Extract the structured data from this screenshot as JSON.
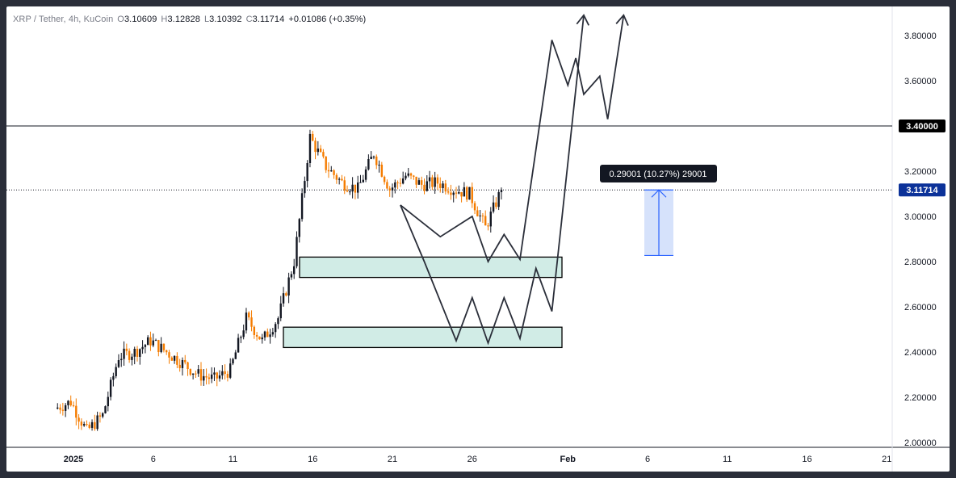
{
  "legend": {
    "symbol": "XRP / Tether, 4h, KuCoin",
    "open_label": "O",
    "open": "3.10609",
    "high_label": "H",
    "high": "3.12828",
    "low_label": "L",
    "low": "3.10392",
    "close_label": "C",
    "close": "3.11714",
    "change": "+0.01086 (+0.35%)"
  },
  "colors": {
    "up": "#131722",
    "down": "#f57c00",
    "zone_fill": "#d1ece6",
    "zone_stroke": "#000000",
    "path": "#2a2e39",
    "measure": "#2962ff",
    "measure_fill": "#d6e2fb",
    "last_price_tag": "#0c3299",
    "level_tag": "#000000"
  },
  "chart_data": {
    "type": "candlestick",
    "symbol": "XRP / Tether",
    "interval": "4h",
    "exchange": "KuCoin",
    "ylim": [
      1.97,
      3.93
    ],
    "y_ticks": [
      "2.00000",
      "2.20000",
      "2.40000",
      "2.60000",
      "2.80000",
      "3.00000",
      "3.20000",
      "3.40000",
      "3.60000",
      "3.80000"
    ],
    "x_ticks": [
      "2025",
      "6",
      "11",
      "16",
      "21",
      "26",
      "Feb",
      "6",
      "11",
      "16",
      "21"
    ],
    "date_range": [
      "2024-12-31",
      "2025-01-28"
    ],
    "key_prices": [
      {
        "date": "2024-12-31",
        "price": 2.15
      },
      {
        "date": "2025-01-01",
        "price": 2.18
      },
      {
        "date": "2025-01-02",
        "price": 2.05
      },
      {
        "date": "2025-01-03",
        "price": 2.12
      },
      {
        "date": "2025-01-04",
        "price": 2.38
      },
      {
        "date": "2025-01-05",
        "price": 2.4
      },
      {
        "date": "2025-01-06",
        "price": 2.45
      },
      {
        "date": "2025-01-07",
        "price": 2.4
      },
      {
        "date": "2025-01-08",
        "price": 2.35
      },
      {
        "date": "2025-01-09",
        "price": 2.3
      },
      {
        "date": "2025-01-10",
        "price": 2.28
      },
      {
        "date": "2025-01-11",
        "price": 2.32
      },
      {
        "date": "2025-01-12",
        "price": 2.55
      },
      {
        "date": "2025-01-13",
        "price": 2.45
      },
      {
        "date": "2025-01-14",
        "price": 2.55
      },
      {
        "date": "2025-01-15",
        "price": 2.8
      },
      {
        "date": "2025-01-16",
        "price": 3.35
      },
      {
        "date": "2025-01-17",
        "price": 3.22
      },
      {
        "date": "2025-01-18",
        "price": 3.15
      },
      {
        "date": "2025-01-19",
        "price": 3.12
      },
      {
        "date": "2025-01-20",
        "price": 3.28
      },
      {
        "date": "2025-01-21",
        "price": 3.12
      },
      {
        "date": "2025-01-22",
        "price": 3.18
      },
      {
        "date": "2025-01-23",
        "price": 3.14
      },
      {
        "date": "2025-01-24",
        "price": 3.15
      },
      {
        "date": "2025-01-25",
        "price": 3.12
      },
      {
        "date": "2025-01-26",
        "price": 3.1
      },
      {
        "date": "2025-01-27",
        "price": 2.95
      },
      {
        "date": "2025-01-28",
        "price": 3.11714
      }
    ],
    "horizontal_level": {
      "price": 3.4,
      "label": "3.40000"
    },
    "last_price": {
      "price": 3.11714,
      "label": "3.11714"
    },
    "zones": [
      {
        "top": 2.82,
        "bottom": 2.73
      },
      {
        "top": 2.51,
        "bottom": 2.42
      }
    ],
    "measure": {
      "from": 2.827,
      "to": 3.117,
      "label": "0.29001 (10.27%) 29001"
    },
    "projection_paths": [
      {
        "name": "upper",
        "points": [
          [
            21.5,
            3.05
          ],
          [
            24,
            2.91
          ],
          [
            26,
            3.0
          ],
          [
            27,
            2.8
          ],
          [
            28,
            2.92
          ],
          [
            29,
            2.81
          ],
          [
            31,
            3.78
          ],
          [
            32,
            3.58
          ],
          [
            32.5,
            3.7
          ],
          [
            33,
            3.54
          ],
          [
            34,
            3.62
          ],
          [
            34.5,
            3.43
          ],
          [
            35.5,
            3.89
          ]
        ]
      },
      {
        "name": "lower",
        "points": [
          [
            21.5,
            3.05
          ],
          [
            23,
            2.8
          ],
          [
            25,
            2.45
          ],
          [
            26,
            2.64
          ],
          [
            27,
            2.44
          ],
          [
            28,
            2.64
          ],
          [
            29,
            2.46
          ],
          [
            30,
            2.77
          ],
          [
            31,
            2.58
          ],
          [
            33,
            3.89
          ]
        ]
      }
    ]
  }
}
